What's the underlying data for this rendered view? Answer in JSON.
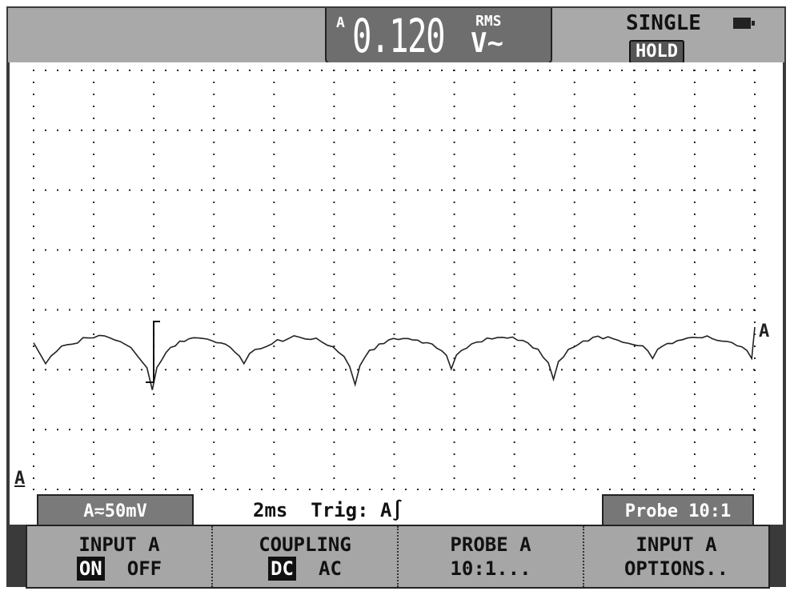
{
  "readout": {
    "channel": "A",
    "value": "0.120",
    "mode": "RMS",
    "unit": "V~"
  },
  "status": {
    "acquisition": "SINGLE",
    "hold": "HOLD",
    "battery_icon": "battery-icon"
  },
  "scale": {
    "volts_per_div": "A≂50mV",
    "timebase": "2ms",
    "trigger": "Trig: A∫",
    "probe": "Probe 10:1"
  },
  "markers": {
    "trace_label": "A",
    "ground_label": "A"
  },
  "menu": [
    {
      "title": "INPUT A",
      "options": [
        "ON",
        "OFF"
      ],
      "selected": "ON"
    },
    {
      "title": "COUPLING",
      "options": [
        "DC",
        "AC"
      ],
      "selected": "DC"
    },
    {
      "title": "PROBE A",
      "sub": "10:1..."
    },
    {
      "title": "INPUT A",
      "sub": "OPTIONS.."
    }
  ],
  "chart_data": {
    "type": "line",
    "x_unit": "ms",
    "y_unit": "mV",
    "xlim": [
      0,
      24
    ],
    "ylim": [
      -25,
      375
    ],
    "grid": true,
    "cusp_times": [
      0.4,
      3.95,
      7.0,
      10.7,
      13.9,
      17.3,
      20.6,
      23.9
    ],
    "cusp_levels": [
      95,
      70,
      95,
      75,
      90,
      80,
      100,
      100
    ],
    "peak_level": 120
  }
}
